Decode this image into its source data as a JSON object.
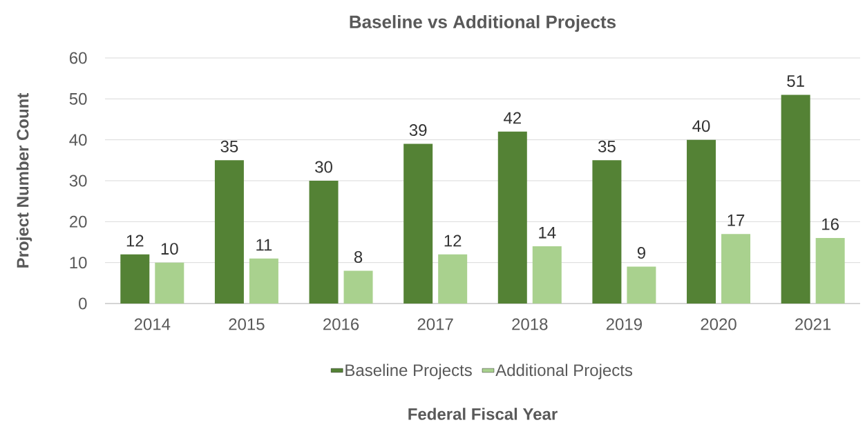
{
  "chart_data": {
    "type": "bar",
    "title": "Baseline vs Additional Projects",
    "xlabel": "Federal Fiscal Year",
    "ylabel": "Project Number Count",
    "categories": [
      "2014",
      "2015",
      "2016",
      "2017",
      "2018",
      "2019",
      "2020",
      "2021"
    ],
    "series": [
      {
        "name": "Baseline Projects",
        "color": "#548235",
        "values": [
          12,
          35,
          30,
          39,
          42,
          35,
          40,
          51
        ]
      },
      {
        "name": "Additional Projects",
        "color": "#a9d18e",
        "values": [
          10,
          11,
          8,
          12,
          14,
          9,
          17,
          16
        ]
      }
    ],
    "ylim": [
      0,
      60
    ],
    "yticks": [
      0,
      10,
      20,
      30,
      40,
      50,
      60
    ],
    "grid": "y",
    "legend": "bottom",
    "data_labels": true
  }
}
